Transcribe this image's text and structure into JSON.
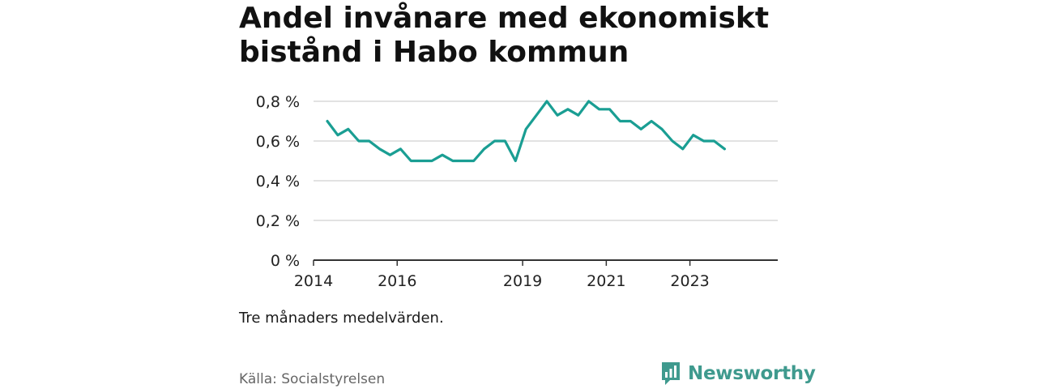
{
  "title": "Andel invånare med ekonomiskt bistånd i Habo kommun",
  "note": "Tre månaders medelvärden.",
  "source": "Källa: Socialstyrelsen",
  "brand": {
    "name": "Newsworthy",
    "icon": "newsworthy-logo-icon",
    "color": "#3f9a8e"
  },
  "colors": {
    "line": "#1a9e93",
    "grid": "#d9d9d9",
    "axis": "#333333"
  },
  "chart_data": {
    "type": "line",
    "title": "Andel invånare med ekonomiskt bistånd i Habo kommun",
    "xlabel": "",
    "ylabel": "",
    "ylim": [
      0,
      0.8
    ],
    "xlim": [
      2014.0,
      2025.1
    ],
    "grid": true,
    "y_ticks": [
      {
        "value": 0,
        "label": "0 %"
      },
      {
        "value": 0.2,
        "label": "0,2 %"
      },
      {
        "value": 0.4,
        "label": "0,4 %"
      },
      {
        "value": 0.6,
        "label": "0,6 %"
      },
      {
        "value": 0.8,
        "label": "0,8 %"
      }
    ],
    "x_ticks": [
      {
        "value": 2014.0,
        "label": "2014"
      },
      {
        "value": 2016.0,
        "label": "2016"
      },
      {
        "value": 2019.0,
        "label": "2019"
      },
      {
        "value": 2021.0,
        "label": "2021"
      },
      {
        "value": 2023.0,
        "label": "2023"
      }
    ],
    "series": [
      {
        "name": "Andel invånare med ekonomiskt bistånd",
        "x": [
          2014.33,
          2014.58,
          2014.83,
          2015.08,
          2015.33,
          2015.58,
          2015.83,
          2016.08,
          2016.33,
          2016.58,
          2016.83,
          2017.08,
          2017.33,
          2017.58,
          2017.83,
          2018.08,
          2018.33,
          2018.58,
          2018.83,
          2019.08,
          2019.33,
          2019.58,
          2019.83,
          2020.08,
          2020.33,
          2020.58,
          2020.83,
          2021.08,
          2021.33,
          2021.58,
          2021.83,
          2022.08,
          2022.33,
          2022.58,
          2022.83,
          2023.08,
          2023.33,
          2023.58,
          2023.83
        ],
        "values": [
          0.7,
          0.63,
          0.66,
          0.6,
          0.6,
          0.56,
          0.53,
          0.56,
          0.5,
          0.5,
          0.5,
          0.53,
          0.5,
          0.5,
          0.5,
          0.56,
          0.6,
          0.6,
          0.5,
          0.66,
          0.73,
          0.8,
          0.73,
          0.76,
          0.73,
          0.8,
          0.76,
          0.76,
          0.7,
          0.7,
          0.66,
          0.7,
          0.66,
          0.6,
          0.56,
          0.63,
          0.6,
          0.6,
          0.56
        ]
      }
    ]
  }
}
